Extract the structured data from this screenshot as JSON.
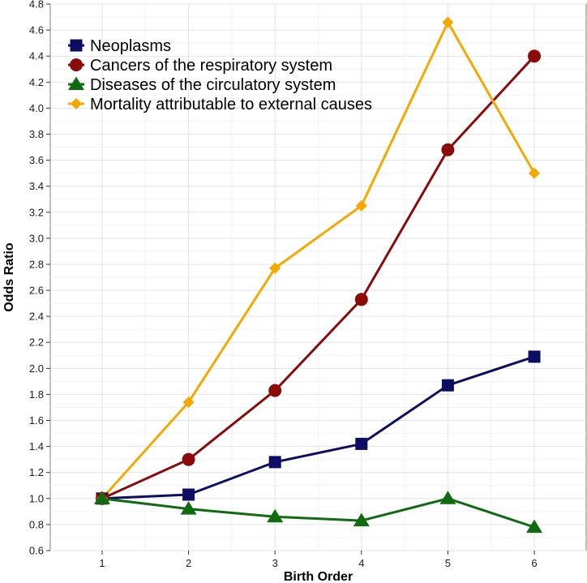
{
  "chart_data": {
    "type": "line",
    "title": "",
    "xlabel": "Birth Order",
    "ylabel": "Odds Ratio",
    "x": [
      1,
      2,
      3,
      4,
      5,
      6
    ],
    "xlim": [
      0.4,
      6.6
    ],
    "ylim": [
      0.6,
      4.8
    ],
    "yticks": [
      0.6,
      0.8,
      1.0,
      1.2,
      1.4,
      1.6,
      1.8,
      2.0,
      2.2,
      2.4,
      2.6,
      2.8,
      3.0,
      3.2,
      3.4,
      3.6,
      3.8,
      4.0,
      4.2,
      4.4,
      4.6,
      4.8
    ],
    "grid": true,
    "legend_position": "top-left",
    "series": [
      {
        "name": "Neoplasms",
        "marker": "square",
        "color": "#0d0d63",
        "values": [
          1.0,
          1.03,
          1.28,
          1.42,
          1.87,
          2.09
        ]
      },
      {
        "name": "Cancers of the respiratory system",
        "marker": "circle",
        "color": "#8b0a0a",
        "values": [
          1.0,
          1.3,
          1.83,
          2.53,
          3.68,
          4.4
        ]
      },
      {
        "name": "Diseases of the circulatory system",
        "marker": "triangle",
        "color": "#0f6b0f",
        "values": [
          1.0,
          0.92,
          0.86,
          0.83,
          1.0,
          0.78
        ]
      },
      {
        "name": "Mortality attributable to external causes",
        "marker": "diamond",
        "color": "#f7a800",
        "values": [
          1.0,
          1.74,
          2.77,
          3.25,
          4.66,
          3.5
        ]
      }
    ]
  }
}
